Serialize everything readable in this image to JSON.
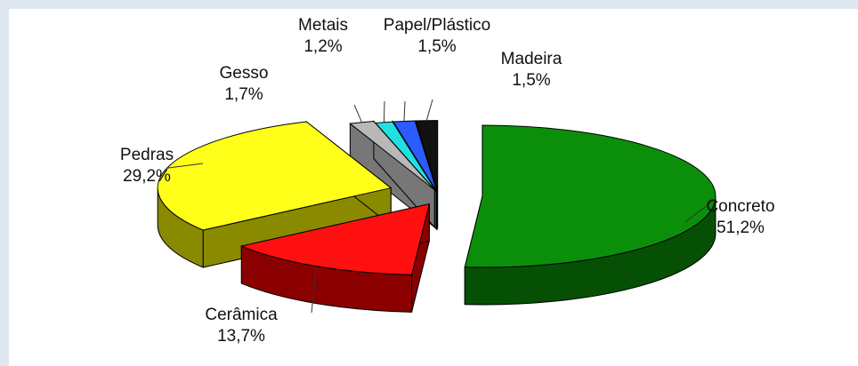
{
  "chart_data": {
    "type": "pie",
    "style": "3d-exploded",
    "slices": [
      {
        "label": "Concreto",
        "value": 51.2,
        "value_text": "51,2%",
        "color": "#0b8f0b",
        "side": "#055005"
      },
      {
        "label": "Cerâmica",
        "value": 13.7,
        "value_text": "13,7%",
        "color": "#ff1010",
        "side": "#8a0000"
      },
      {
        "label": "Pedras",
        "value": 29.2,
        "value_text": "29,2%",
        "color": "#ffff1a",
        "side": "#8a8a00"
      },
      {
        "label": "Gesso",
        "value": 1.7,
        "value_text": "1,7%",
        "color": "#b8b8b8",
        "side": "#777777"
      },
      {
        "label": "Metais",
        "value": 1.2,
        "value_text": "1,2%",
        "color": "#22e0e0",
        "side": "#0a7c7c"
      },
      {
        "label": "Papel/Plástico",
        "value": 1.5,
        "value_text": "1,5%",
        "color": "#2a5cff",
        "side": "#102a99"
      },
      {
        "label": "Madeira",
        "value": 1.5,
        "value_text": "1,5%",
        "color": "#111111",
        "side": "#000000"
      }
    ]
  }
}
